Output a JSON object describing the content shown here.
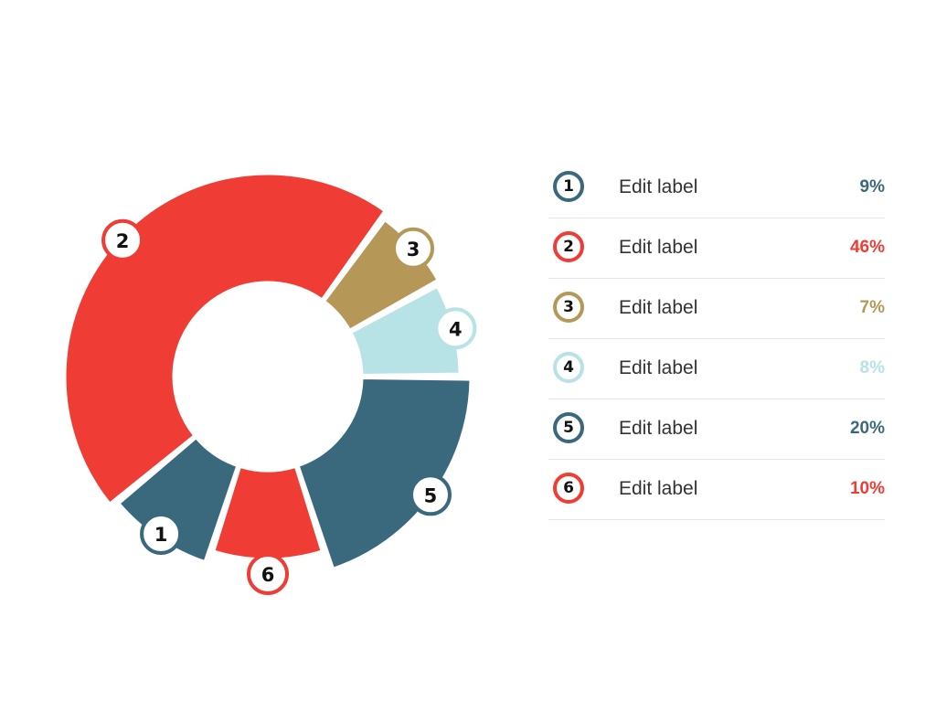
{
  "chart_data": {
    "type": "pie",
    "variant": "donut",
    "slices": [
      {
        "id": "1",
        "label": "Edit label",
        "value": 9,
        "value_label": "9%",
        "color": "#3a687d"
      },
      {
        "id": "2",
        "label": "Edit label",
        "value": 46,
        "value_label": "46%",
        "color": "#ef3d35"
      },
      {
        "id": "3",
        "label": "Edit label",
        "value": 7,
        "value_label": "7%",
        "color": "#b59758"
      },
      {
        "id": "4",
        "label": "Edit label",
        "value": 8,
        "value_label": "8%",
        "color": "#b7e3e6"
      },
      {
        "id": "5",
        "label": "Edit label",
        "value": 20,
        "value_label": "20%",
        "color": "#3a687d"
      },
      {
        "id": "6",
        "label": "Edit label",
        "value": 10,
        "value_label": "10%",
        "color": "#ef3d35"
      }
    ],
    "legend_position": "right"
  }
}
